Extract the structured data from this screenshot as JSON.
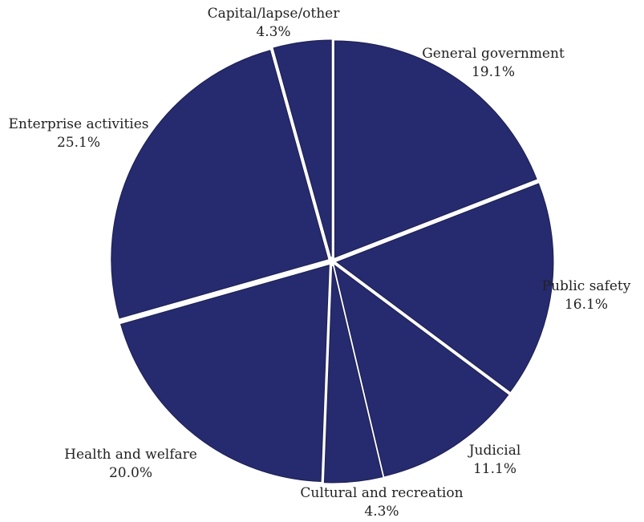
{
  "chart_data": {
    "type": "pie",
    "title": "",
    "color": "#262a6e",
    "slices": [
      {
        "label": "General government",
        "value": 19.1,
        "value_label": "19.1%"
      },
      {
        "label": "Public safety",
        "value": 16.1,
        "value_label": "16.1%"
      },
      {
        "label": "Judicial",
        "value": 11.1,
        "value_label": "11.1%"
      },
      {
        "label": "Cultural and recreation",
        "value": 4.3,
        "value_label": "4.3%"
      },
      {
        "label": "Health and welfare",
        "value": 20.0,
        "value_label": "20.0%"
      },
      {
        "label": "Enterprise activities",
        "value": 25.1,
        "value_label": "25.1%"
      },
      {
        "label": "Capital/lapse/other",
        "value": 4.3,
        "value_label": "4.3%"
      }
    ]
  }
}
